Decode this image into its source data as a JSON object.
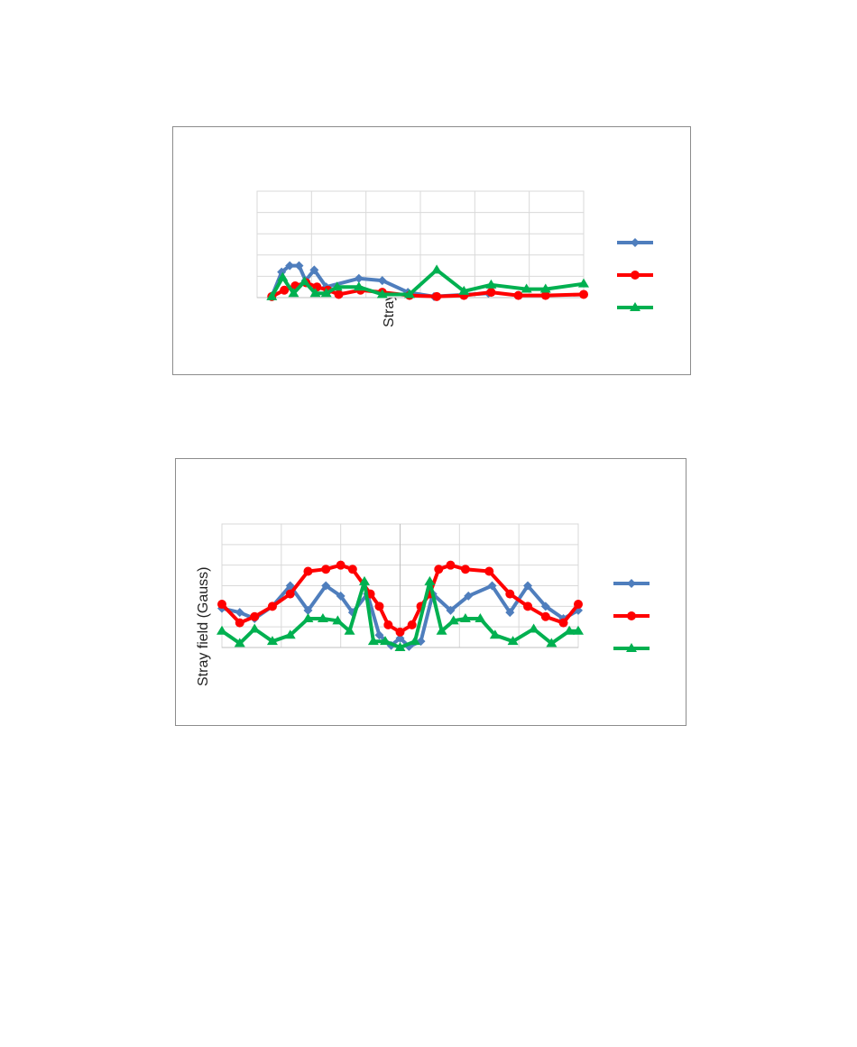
{
  "chart_data": [
    {
      "type": "line",
      "ylabel": "Stray field (Gauss)",
      "xlabel": "",
      "legend_position": "right",
      "grid": true,
      "xlim": [
        0,
        6
      ],
      "ylim": [
        0,
        5
      ],
      "series": [
        {
          "color": "#4F7EBD",
          "marker": "diamond",
          "x": [
            0.27,
            0.45,
            0.6,
            0.77,
            0.89,
            1.05,
            1.27,
            1.87,
            2.3,
            2.77,
            3.25,
            4.25
          ],
          "y": [
            0.05,
            1.2,
            1.5,
            1.5,
            0.8,
            1.3,
            0.5,
            0.9,
            0.8,
            0.25,
            0.05,
            0.2
          ]
        },
        {
          "color": "#FF0000",
          "marker": "circle",
          "x": [
            0.27,
            0.5,
            0.7,
            0.9,
            1.1,
            1.3,
            1.5,
            1.9,
            2.3,
            2.8,
            3.3,
            3.8,
            4.3,
            4.8,
            5.3,
            6.0
          ],
          "y": [
            0.05,
            0.35,
            0.55,
            0.7,
            0.5,
            0.35,
            0.15,
            0.35,
            0.25,
            0.1,
            0.05,
            0.1,
            0.25,
            0.1,
            0.1,
            0.15
          ]
        },
        {
          "color": "#00B050",
          "marker": "triangle",
          "x": [
            0.27,
            0.47,
            0.67,
            0.87,
            1.07,
            1.27,
            1.47,
            1.87,
            2.3,
            2.8,
            3.3,
            3.8,
            4.3,
            4.95,
            5.3,
            6.0
          ],
          "y": [
            0.05,
            0.95,
            0.2,
            0.75,
            0.2,
            0.2,
            0.5,
            0.5,
            0.15,
            0.15,
            1.3,
            0.3,
            0.6,
            0.4,
            0.4,
            0.65
          ]
        }
      ]
    },
    {
      "type": "line",
      "ylabel": "Stray field (Gauss)",
      "xlabel": "",
      "legend_position": "right",
      "grid": true,
      "xlim": [
        0,
        6
      ],
      "ylim": [
        0,
        6
      ],
      "series": [
        {
          "color": "#4F7EBD",
          "marker": "diamond",
          "x": [
            0.0,
            0.3,
            0.55,
            0.85,
            1.15,
            1.45,
            1.75,
            2.0,
            2.2,
            2.45,
            2.65,
            2.85,
            3.0,
            3.15,
            3.35,
            3.55,
            3.85,
            4.15,
            4.55,
            4.85,
            5.15,
            5.45,
            5.75,
            6.0
          ],
          "y": [
            1.9,
            1.7,
            1.4,
            2.0,
            3.0,
            1.8,
            3.0,
            2.5,
            1.7,
            2.6,
            0.6,
            0.1,
            0.45,
            0.05,
            0.3,
            2.6,
            1.8,
            2.5,
            3.0,
            1.7,
            3.0,
            2.0,
            1.4,
            1.8
          ]
        },
        {
          "color": "#FF0000",
          "marker": "circle",
          "x": [
            0.0,
            0.3,
            0.55,
            0.85,
            1.15,
            1.45,
            1.75,
            2.0,
            2.2,
            2.5,
            2.65,
            2.8,
            3.0,
            3.2,
            3.35,
            3.5,
            3.65,
            3.85,
            4.1,
            4.5,
            4.85,
            5.15,
            5.45,
            5.75,
            6.0
          ],
          "y": [
            2.1,
            1.2,
            1.5,
            2.0,
            2.6,
            3.7,
            3.8,
            4.0,
            3.8,
            2.6,
            2.0,
            1.1,
            0.75,
            1.1,
            2.0,
            2.6,
            3.8,
            4.0,
            3.8,
            3.7,
            2.6,
            2.0,
            1.5,
            1.2,
            2.1
          ]
        },
        {
          "color": "#00B050",
          "marker": "triangle",
          "x": [
            0.0,
            0.3,
            0.55,
            0.85,
            1.15,
            1.45,
            1.7,
            1.95,
            2.15,
            2.4,
            2.55,
            2.75,
            3.0,
            3.25,
            3.5,
            3.7,
            3.9,
            4.1,
            4.35,
            4.6,
            4.9,
            5.25,
            5.55,
            5.85,
            6.0
          ],
          "y": [
            0.8,
            0.2,
            0.9,
            0.3,
            0.6,
            1.4,
            1.4,
            1.3,
            0.8,
            3.2,
            0.3,
            0.3,
            0.0,
            0.3,
            3.2,
            0.8,
            1.3,
            1.4,
            1.4,
            0.6,
            0.3,
            0.9,
            0.2,
            0.8,
            0.8
          ]
        }
      ]
    }
  ]
}
